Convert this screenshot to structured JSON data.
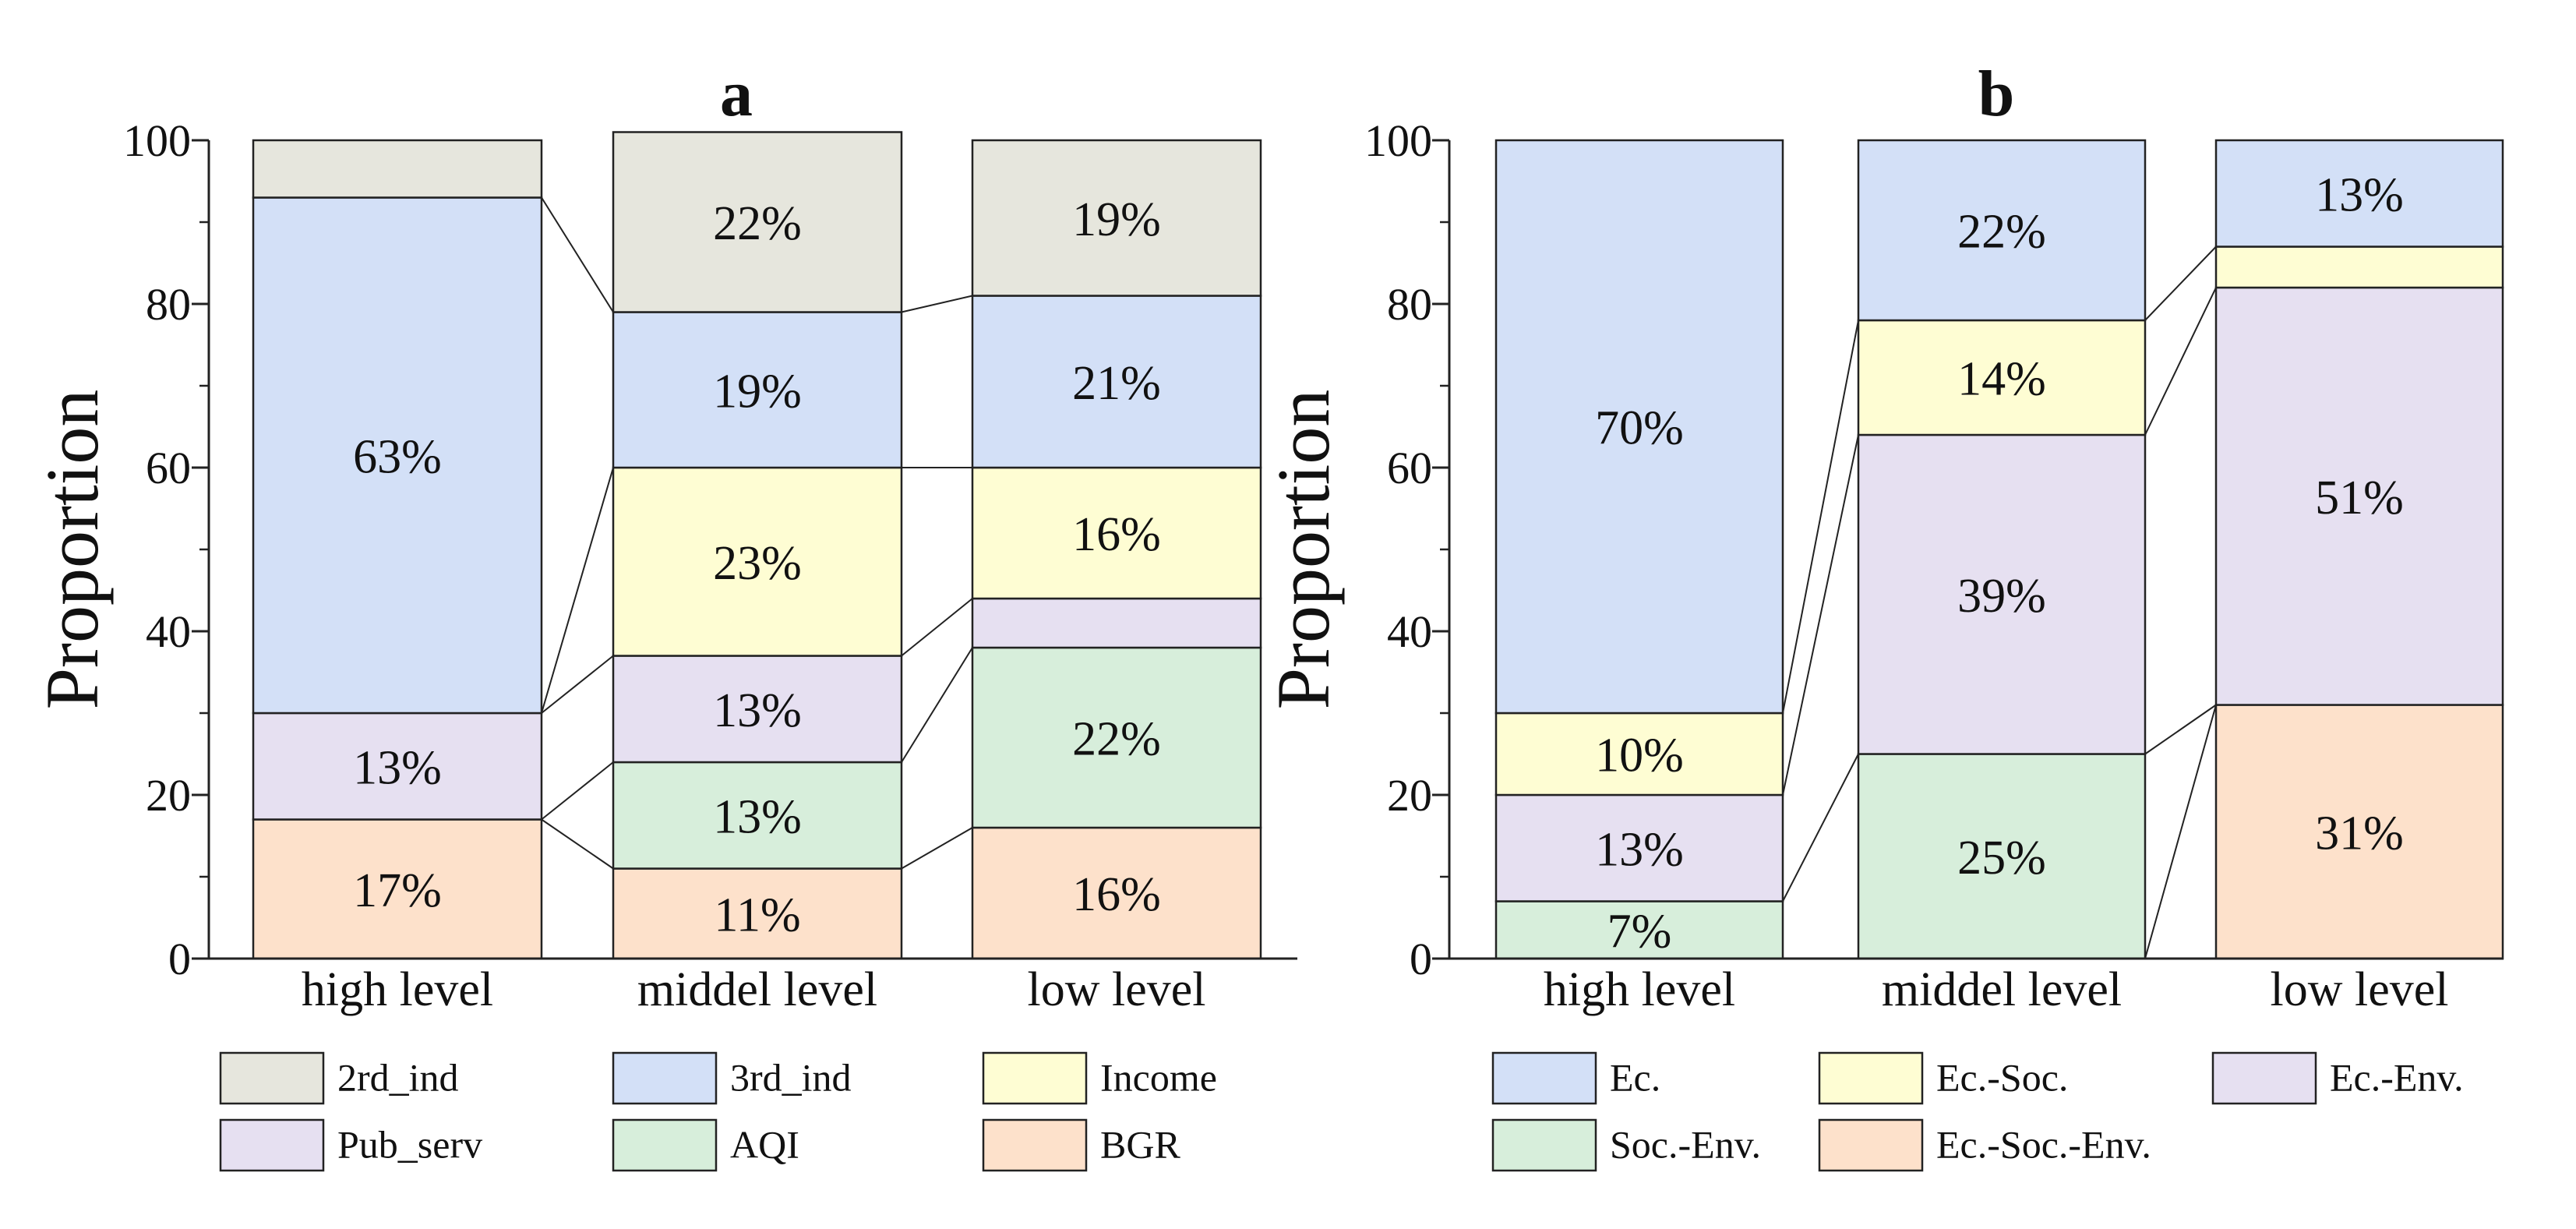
{
  "chart_data": [
    {
      "id": "a",
      "title": "a",
      "type": "stacked-bar",
      "ylabel": "Proportion",
      "xlabel": "",
      "ylim": [
        0,
        100
      ],
      "yticks": [
        0,
        20,
        40,
        60,
        80,
        100
      ],
      "categories": [
        "high level",
        "middel level",
        "low level"
      ],
      "series": [
        {
          "name": "BGR",
          "color": "#fde1cb",
          "values": [
            17,
            11,
            16
          ],
          "labels": [
            "17%",
            "11%",
            "16%"
          ]
        },
        {
          "name": "AQI",
          "color": "#d7eedb",
          "values": [
            0,
            13,
            22
          ],
          "labels": [
            "",
            "13%",
            "22%"
          ]
        },
        {
          "name": "Pub_serv",
          "color": "#e6e0f1",
          "values": [
            13,
            13,
            6
          ],
          "labels": [
            "13%",
            "13%",
            ""
          ]
        },
        {
          "name": "Income",
          "color": "#fefdd3",
          "values": [
            0,
            23,
            16
          ],
          "labels": [
            "",
            "23%",
            "16%"
          ]
        },
        {
          "name": "3rd_ind",
          "color": "#d3e0f7",
          "values": [
            63,
            19,
            21
          ],
          "labels": [
            "63%",
            "19%",
            "21%"
          ]
        },
        {
          "name": "2rd_ind",
          "color": "#e6e6dd",
          "values": [
            7,
            22,
            19
          ],
          "labels": [
            "",
            "22%",
            "19%"
          ]
        }
      ],
      "legend_order": [
        "2rd_ind",
        "3rd_ind",
        "Income",
        "Pub_serv",
        "AQI",
        "BGR"
      ]
    },
    {
      "id": "b",
      "title": "b",
      "type": "stacked-bar",
      "ylabel": "Proportion",
      "xlabel": "",
      "ylim": [
        0,
        100
      ],
      "yticks": [
        0,
        20,
        40,
        60,
        80,
        100
      ],
      "categories": [
        "high level",
        "middel level",
        "low level"
      ],
      "series": [
        {
          "name": "Ec.-Soc.-Env.",
          "color": "#fde1cb",
          "values": [
            0,
            0,
            31
          ],
          "labels": [
            "",
            "",
            "31%"
          ]
        },
        {
          "name": "Soc.-Env.",
          "color": "#d7eedb",
          "values": [
            7,
            25,
            0
          ],
          "labels": [
            "7%",
            "25%",
            ""
          ]
        },
        {
          "name": "Ec.-Env.",
          "color": "#e6e0f1",
          "values": [
            13,
            39,
            51
          ],
          "labels": [
            "13%",
            "39%",
            "51%"
          ]
        },
        {
          "name": "Ec.-Soc.",
          "color": "#fefdd3",
          "values": [
            10,
            14,
            5
          ],
          "labels": [
            "10%",
            "14%",
            ""
          ]
        },
        {
          "name": "Ec.",
          "color": "#d3e0f7",
          "values": [
            70,
            22,
            13
          ],
          "labels": [
            "70%",
            "22%",
            "13%"
          ]
        }
      ],
      "legend_order": [
        "Ec.",
        "Ec.-Soc.",
        "Ec.-Env.",
        "Soc.-Env.",
        "Ec.-Soc.-Env."
      ]
    }
  ]
}
